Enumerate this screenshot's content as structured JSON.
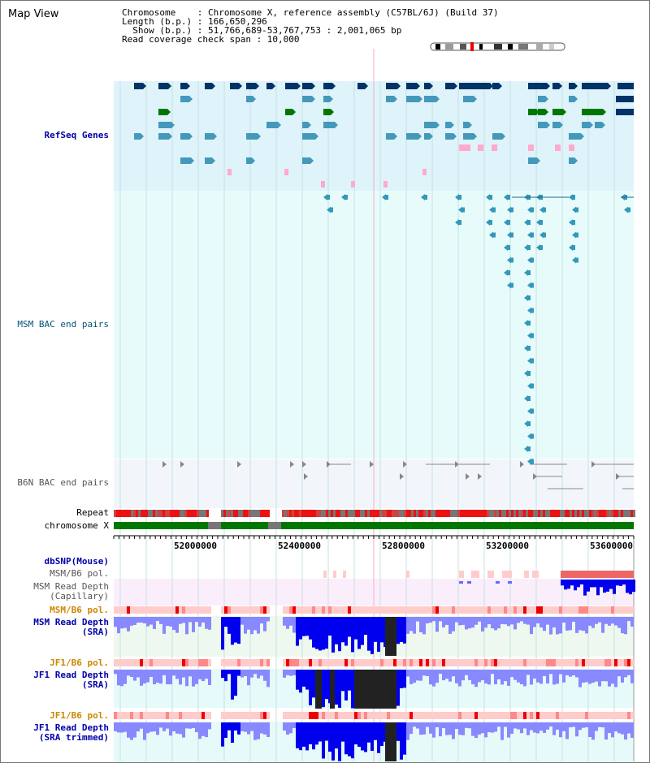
{
  "title": "Map View",
  "info": {
    "line1": "Chromosome    : Chromosome X, reference assembly (C57BL/6J) (Build 37)",
    "line2": "Length (b.p.) : 166,650,296",
    "line3": "  Show (b.p.) : 51,766,689-53,767,753 : 2,001,065 bp",
    "line4": "Read coverage check span : 10,000"
  },
  "tracks": {
    "refseq": "RefSeq Genes",
    "msm_bac": "MSM BAC end pairs",
    "b6n_bac": "B6N BAC end pairs",
    "repeat": "Repeat",
    "chromosome": "chromosome X",
    "dbsnp": "dbSNP(Mouse)",
    "msm_b6_pol_1": "MSM/B6 pol.",
    "msm_read_cap": "MSM Read Depth\n(Capillary)",
    "msm_b6_pol_2": "MSM/B6 pol.",
    "msm_read_sra": "MSM Read Depth\n(SRA)",
    "jf1_b6_pol_1": "JF1/B6 pol.",
    "jf1_read_sra": "JF1 Read Depth\n(SRA)",
    "jf1_b6_pol_2": "JF1/B6 pol.",
    "jf1_read_trim": "JF1 Read Depth\n(SRA trimmed)"
  },
  "axis_ticks": [
    "52000000",
    "52400000",
    "52800000",
    "53200000",
    "53600000"
  ],
  "colors": {
    "refseq_bg": "#dff3fb",
    "msm_bg": "#e8fbfb",
    "b6n_bg": "#f2f6fb",
    "capillary_bg": "#fbeefb",
    "sra_bg": "#eef8ee",
    "jf1_bg": "#e6fafa",
    "gene_dark": "#003366",
    "gene_mid": "#4499bb",
    "gene_green": "#007700",
    "depth_blue": "#0000ee",
    "depth_light": "#8888ff",
    "pol_light": "#ffcccc",
    "pol_red": "#ee0000"
  }
}
